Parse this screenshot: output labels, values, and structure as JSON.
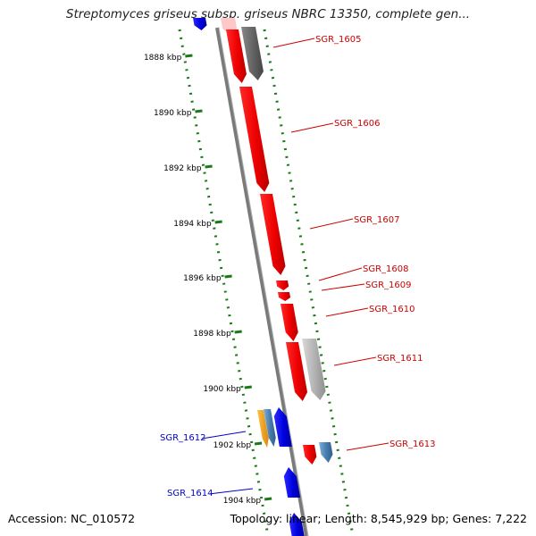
{
  "title": "Streptomyces griseus subsp. griseus NBRC 13350, complete gen...",
  "accession": "Accession: NC_010572",
  "topology": "Topology: linear; Length: 8,545,929 bp; Genes: 7,222",
  "colors": {
    "red": "#ee0000",
    "blue": "#0000dd",
    "dark_gray": "#666666",
    "light_gray": "#b5b5b5",
    "steel_blue": "#4a7fb0",
    "orange": "#f0a020",
    "axis_green": "#1a7a1a",
    "red_label": "#cc0000",
    "blue_label": "#0000cc"
  },
  "scale_ticks": [
    "1888 kbp",
    "1890 kbp",
    "1892 kbp",
    "1894 kbp",
    "1896 kbp",
    "1898 kbp",
    "1900 kbp",
    "1902 kbp",
    "1904 kbp"
  ],
  "gene_labels": [
    {
      "name": "SGR_1605",
      "color": "red"
    },
    {
      "name": "SGR_1606",
      "color": "red"
    },
    {
      "name": "SGR_1607",
      "color": "red"
    },
    {
      "name": "SGR_1608",
      "color": "red"
    },
    {
      "name": "SGR_1609",
      "color": "red"
    },
    {
      "name": "SGR_1610",
      "color": "red"
    },
    {
      "name": "SGR_1611",
      "color": "red"
    },
    {
      "name": "SGR_1613",
      "color": "red"
    },
    {
      "name": "SGR_1612",
      "color": "blue"
    },
    {
      "name": "SGR_1614",
      "color": "blue"
    }
  ]
}
